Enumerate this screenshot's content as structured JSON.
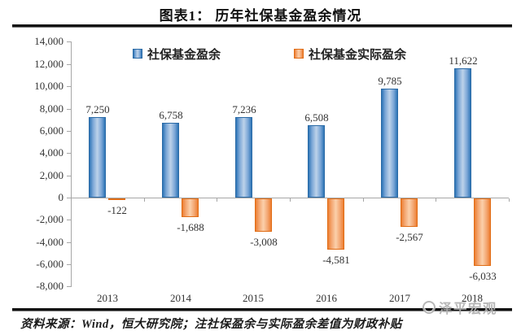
{
  "header": {
    "title": "图表1：  历年社保基金盈余情况"
  },
  "chart_data": {
    "type": "bar",
    "title": "历年社保基金盈余情况",
    "categories": [
      "2013",
      "2014",
      "2015",
      "2016",
      "2017",
      "2018"
    ],
    "series": [
      {
        "name": "社保基金盈余",
        "color": "#2E75B6",
        "values": [
          7250,
          6758,
          7236,
          6508,
          9785,
          11622
        ],
        "labels": [
          "7,250",
          "6,758",
          "7,236",
          "6,508",
          "9,785",
          "11,622"
        ]
      },
      {
        "name": "社保基金实际盈余",
        "color": "#ED7D31",
        "values": [
          -122,
          -1688,
          -3008,
          -4581,
          -2567,
          -6033
        ],
        "labels": [
          "-122",
          "-1,688",
          "-3,008",
          "-4,581",
          "-2,567",
          "-6,033"
        ]
      }
    ],
    "ylim": [
      -8000,
      14000
    ],
    "ytick_step": 2000,
    "yticks": [
      14000,
      12000,
      10000,
      8000,
      6000,
      4000,
      2000,
      0,
      -2000,
      -4000,
      -6000,
      -8000
    ],
    "ytick_labels": [
      "14,000",
      "12,000",
      "10,000",
      "8,000",
      "6,000",
      "4,000",
      "2,000",
      "0",
      "-2,000",
      "-4,000",
      "-6,000",
      "-8,000"
    ],
    "grid": false,
    "legend_position": "top",
    "xlabel": "",
    "ylabel": ""
  },
  "footer": {
    "source": "资料来源：Wind，恒大研究院；注社保盈余与实际盈余差值为财政补贴"
  },
  "watermark": {
    "text": "泽平宏观"
  }
}
